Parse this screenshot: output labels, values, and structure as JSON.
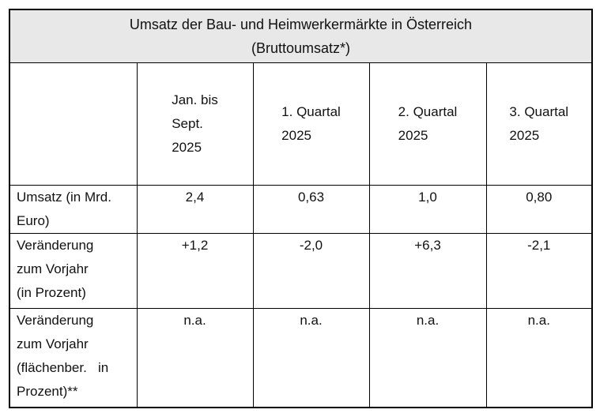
{
  "table": {
    "title": [
      "Umsatz der Bau- und Heimwerkermärkte in Österreich",
      "(Bruttoumsatz*)"
    ],
    "header": [
      [
        "Jan. bis",
        "Sept.",
        "2025"
      ],
      [
        "1. Quartal",
        "2025"
      ],
      [
        "2. Quartal",
        "2025"
      ],
      [
        "3. Quartal",
        "2025"
      ]
    ],
    "rows": [
      {
        "label": [
          "Umsatz (in Mrd.",
          "Euro)"
        ],
        "cells": [
          "2,4",
          "0,63",
          "1,0",
          "0,80"
        ]
      },
      {
        "label": [
          "Veränderung",
          "zum Vorjahr",
          "(in Prozent)"
        ],
        "cells": [
          "+1,2",
          "-2,0",
          "+6,3",
          "-2,1"
        ]
      },
      {
        "label": [
          "Veränderung",
          "zum Vorjahr",
          "(flächenber.   in",
          "Prozent)**"
        ],
        "cells": [
          "n.a.",
          "n.a.",
          "n.a.",
          "n.a."
        ]
      }
    ]
  }
}
